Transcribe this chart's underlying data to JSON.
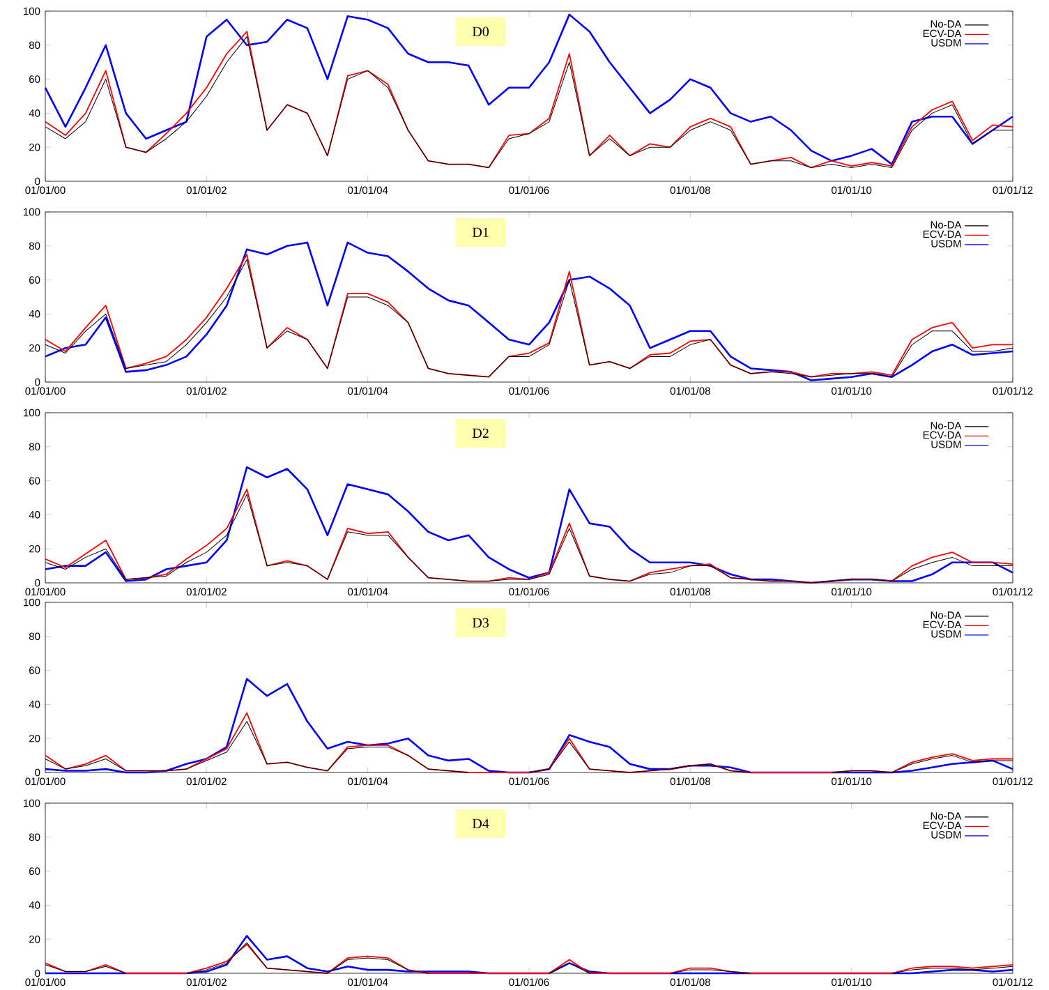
{
  "chart_data": [
    {
      "type": "line",
      "annotations": [
        "D0"
      ],
      "legend": "top right",
      "ylim": [
        0,
        100
      ],
      "yticks": [
        0,
        20,
        40,
        60,
        80,
        100
      ],
      "xlim": [
        "2000-01-01",
        "2012-01-01"
      ],
      "xticks": [
        {
          "value": "2000-01-01",
          "label": "01/01/00"
        },
        {
          "value": "2002-01-01",
          "label": "01/01/02"
        },
        {
          "value": "2004-01-01",
          "label": "01/01/04"
        },
        {
          "value": "2006-01-01",
          "label": "01/01/06"
        },
        {
          "value": "2008-01-01",
          "label": "01/01/08"
        },
        {
          "value": "2010-01-01",
          "label": "01/01/10"
        },
        {
          "value": "2012-01-01",
          "label": "01/01/12"
        }
      ],
      "x": [
        "2000-01",
        "2000-04",
        "2000-07",
        "2000-10",
        "2001-01",
        "2001-04",
        "2001-07",
        "2001-10",
        "2002-01",
        "2002-04",
        "2002-07",
        "2002-10",
        "2003-01",
        "2003-04",
        "2003-07",
        "2003-10",
        "2004-01",
        "2004-04",
        "2004-07",
        "2004-10",
        "2005-01",
        "2005-04",
        "2005-07",
        "2005-10",
        "2006-01",
        "2006-04",
        "2006-07",
        "2006-10",
        "2007-01",
        "2007-04",
        "2007-07",
        "2007-10",
        "2008-01",
        "2008-04",
        "2008-07",
        "2008-10",
        "2009-01",
        "2009-04",
        "2009-07",
        "2009-10",
        "2010-01",
        "2010-04",
        "2010-07",
        "2010-10",
        "2011-01",
        "2011-04",
        "2011-07",
        "2011-10",
        "2012-01"
      ],
      "series": [
        {
          "name": "No-DA",
          "color": "#000000",
          "values": [
            32,
            25,
            35,
            60,
            20,
            17,
            25,
            35,
            50,
            70,
            85,
            30,
            45,
            40,
            15,
            60,
            65,
            55,
            30,
            12,
            10,
            10,
            8,
            25,
            28,
            35,
            70,
            15,
            25,
            15,
            20,
            20,
            30,
            35,
            30,
            10,
            12,
            12,
            8,
            10,
            8,
            10,
            8,
            30,
            40,
            45,
            22,
            30,
            30
          ]
        },
        {
          "name": "ECV-DA",
          "color": "#ff0000",
          "values": [
            35,
            27,
            40,
            65,
            20,
            17,
            28,
            40,
            55,
            75,
            88,
            30,
            45,
            40,
            15,
            62,
            65,
            57,
            30,
            12,
            10,
            10,
            8,
            27,
            28,
            37,
            75,
            15,
            27,
            15,
            22,
            20,
            32,
            37,
            32,
            10,
            12,
            14,
            8,
            12,
            9,
            11,
            9,
            32,
            42,
            47,
            24,
            33,
            32
          ]
        },
        {
          "name": "USDM",
          "color": "#0000ff",
          "values": [
            55,
            32,
            55,
            80,
            40,
            25,
            30,
            35,
            85,
            95,
            80,
            82,
            95,
            90,
            60,
            97,
            95,
            90,
            75,
            70,
            70,
            68,
            45,
            55,
            55,
            70,
            98,
            88,
            70,
            55,
            40,
            48,
            60,
            55,
            40,
            35,
            38,
            30,
            18,
            12,
            15,
            19,
            10,
            35,
            38,
            38,
            22,
            30,
            38
          ]
        }
      ]
    },
    {
      "type": "line",
      "annotations": [
        "D1"
      ],
      "legend": "top right",
      "ylim": [
        0,
        100
      ],
      "yticks": [
        0,
        20,
        40,
        60,
        80,
        100
      ],
      "xlim": [
        "2000-01-01",
        "2012-01-01"
      ],
      "xticks": [
        {
          "value": "2000-01-01",
          "label": "01/01/00"
        },
        {
          "value": "2002-01-01",
          "label": "01/01/02"
        },
        {
          "value": "2004-01-01",
          "label": "01/01/04"
        },
        {
          "value": "2006-01-01",
          "label": "01/01/06"
        },
        {
          "value": "2008-01-01",
          "label": "01/01/08"
        },
        {
          "value": "2010-01-01",
          "label": "01/01/10"
        },
        {
          "value": "2012-01-01",
          "label": "01/01/12"
        }
      ],
      "x": [
        "2000-01",
        "2000-04",
        "2000-07",
        "2000-10",
        "2001-01",
        "2001-04",
        "2001-07",
        "2001-10",
        "2002-01",
        "2002-04",
        "2002-07",
        "2002-10",
        "2003-01",
        "2003-04",
        "2003-07",
        "2003-10",
        "2004-01",
        "2004-04",
        "2004-07",
        "2004-10",
        "2005-01",
        "2005-04",
        "2005-07",
        "2005-10",
        "2006-01",
        "2006-04",
        "2006-07",
        "2006-10",
        "2007-01",
        "2007-04",
        "2007-07",
        "2007-10",
        "2008-01",
        "2008-04",
        "2008-07",
        "2008-10",
        "2009-01",
        "2009-04",
        "2009-07",
        "2009-10",
        "2010-01",
        "2010-04",
        "2010-07",
        "2010-10",
        "2011-01",
        "2011-04",
        "2011-07",
        "2011-10",
        "2012-01"
      ],
      "series": [
        {
          "name": "No-DA",
          "color": "#000000",
          "values": [
            22,
            17,
            30,
            40,
            8,
            10,
            12,
            22,
            35,
            50,
            72,
            20,
            30,
            25,
            8,
            50,
            50,
            45,
            35,
            8,
            5,
            4,
            3,
            15,
            15,
            22,
            60,
            10,
            12,
            8,
            15,
            15,
            22,
            25,
            10,
            5,
            6,
            5,
            3,
            4,
            5,
            5,
            3,
            22,
            30,
            30,
            18,
            18,
            20
          ]
        },
        {
          "name": "ECV-DA",
          "color": "#ff0000",
          "values": [
            25,
            18,
            32,
            45,
            8,
            11,
            15,
            25,
            38,
            55,
            75,
            20,
            32,
            25,
            8,
            52,
            52,
            47,
            35,
            8,
            5,
            4,
            3,
            15,
            17,
            23,
            65,
            10,
            12,
            8,
            16,
            17,
            24,
            25,
            10,
            5,
            6,
            6,
            3,
            5,
            5,
            6,
            4,
            25,
            32,
            35,
            20,
            22,
            22
          ]
        },
        {
          "name": "USDM",
          "color": "#0000ff",
          "values": [
            15,
            20,
            22,
            38,
            6,
            7,
            10,
            15,
            28,
            45,
            78,
            75,
            80,
            82,
            45,
            82,
            76,
            74,
            65,
            55,
            48,
            45,
            35,
            25,
            22,
            35,
            60,
            62,
            55,
            45,
            20,
            25,
            30,
            30,
            15,
            8,
            7,
            6,
            1,
            2,
            3,
            5,
            3,
            10,
            18,
            22,
            16,
            17,
            18
          ]
        }
      ]
    },
    {
      "type": "line",
      "annotations": [
        "D2"
      ],
      "legend": "top right",
      "ylim": [
        0,
        100
      ],
      "yticks": [
        0,
        20,
        40,
        60,
        80,
        100
      ],
      "xlim": [
        "2000-01-01",
        "2012-01-01"
      ],
      "xticks": [
        {
          "value": "2000-01-01",
          "label": "01/01/00"
        },
        {
          "value": "2002-01-01",
          "label": "01/01/02"
        },
        {
          "value": "2004-01-01",
          "label": "01/01/04"
        },
        {
          "value": "2006-01-01",
          "label": "01/01/06"
        },
        {
          "value": "2008-01-01",
          "label": "01/01/08"
        },
        {
          "value": "2010-01-01",
          "label": "01/01/10"
        },
        {
          "value": "2012-01-01",
          "label": "01/01/12"
        }
      ],
      "x": [
        "2000-01",
        "2000-04",
        "2000-07",
        "2000-10",
        "2001-01",
        "2001-04",
        "2001-07",
        "2001-10",
        "2002-01",
        "2002-04",
        "2002-07",
        "2002-10",
        "2003-01",
        "2003-04",
        "2003-07",
        "2003-10",
        "2004-01",
        "2004-04",
        "2004-07",
        "2004-10",
        "2005-01",
        "2005-04",
        "2005-07",
        "2005-10",
        "2006-01",
        "2006-04",
        "2006-07",
        "2006-10",
        "2007-01",
        "2007-04",
        "2007-07",
        "2007-10",
        "2008-01",
        "2008-04",
        "2008-07",
        "2008-10",
        "2009-01",
        "2009-04",
        "2009-07",
        "2009-10",
        "2010-01",
        "2010-04",
        "2010-07",
        "2010-10",
        "2011-01",
        "2011-04",
        "2011-07",
        "2011-10",
        "2012-01"
      ],
      "series": [
        {
          "name": "No-DA",
          "color": "#000000",
          "values": [
            12,
            8,
            15,
            20,
            2,
            3,
            4,
            12,
            18,
            28,
            52,
            10,
            12,
            10,
            2,
            30,
            28,
            28,
            15,
            3,
            2,
            1,
            1,
            2,
            2,
            5,
            32,
            4,
            2,
            1,
            5,
            6,
            10,
            10,
            3,
            2,
            1,
            1,
            0,
            1,
            2,
            2,
            1,
            8,
            12,
            15,
            10,
            10,
            10
          ]
        },
        {
          "name": "ECV-DA",
          "color": "#ff0000",
          "values": [
            14,
            9,
            17,
            25,
            2,
            3,
            5,
            14,
            22,
            32,
            55,
            10,
            13,
            10,
            2,
            32,
            29,
            30,
            15,
            3,
            2,
            1,
            1,
            3,
            2,
            6,
            35,
            4,
            2,
            1,
            6,
            8,
            10,
            11,
            3,
            2,
            1,
            1,
            0,
            1,
            2,
            2,
            1,
            10,
            15,
            18,
            12,
            12,
            11
          ]
        },
        {
          "name": "USDM",
          "color": "#0000ff",
          "values": [
            8,
            10,
            10,
            18,
            1,
            2,
            8,
            10,
            12,
            25,
            68,
            62,
            67,
            55,
            28,
            58,
            55,
            52,
            42,
            30,
            25,
            28,
            15,
            8,
            3,
            6,
            55,
            35,
            33,
            20,
            12,
            12,
            12,
            10,
            5,
            2,
            2,
            1,
            0,
            1,
            2,
            2,
            1,
            1,
            5,
            12,
            12,
            12,
            6
          ]
        }
      ]
    },
    {
      "type": "line",
      "annotations": [
        "D3"
      ],
      "legend": "top right",
      "ylim": [
        0,
        100
      ],
      "yticks": [
        0,
        20,
        40,
        60,
        80,
        100
      ],
      "xlim": [
        "2000-01-01",
        "2012-01-01"
      ],
      "xticks": [
        {
          "value": "2000-01-01",
          "label": "01/01/00"
        },
        {
          "value": "2002-01-01",
          "label": "01/01/02"
        },
        {
          "value": "2004-01-01",
          "label": "01/01/04"
        },
        {
          "value": "2006-01-01",
          "label": "01/01/06"
        },
        {
          "value": "2008-01-01",
          "label": "01/01/08"
        },
        {
          "value": "2010-01-01",
          "label": "01/01/10"
        },
        {
          "value": "2012-01-01",
          "label": "01/01/12"
        }
      ],
      "x": [
        "2000-01",
        "2000-04",
        "2000-07",
        "2000-10",
        "2001-01",
        "2001-04",
        "2001-07",
        "2001-10",
        "2002-01",
        "2002-04",
        "2002-07",
        "2002-10",
        "2003-01",
        "2003-04",
        "2003-07",
        "2003-10",
        "2004-01",
        "2004-04",
        "2004-07",
        "2004-10",
        "2005-01",
        "2005-04",
        "2005-07",
        "2005-10",
        "2006-01",
        "2006-04",
        "2006-07",
        "2006-10",
        "2007-01",
        "2007-04",
        "2007-07",
        "2007-10",
        "2008-01",
        "2008-04",
        "2008-07",
        "2008-10",
        "2009-01",
        "2009-04",
        "2009-07",
        "2009-10",
        "2010-01",
        "2010-04",
        "2010-07",
        "2010-10",
        "2011-01",
        "2011-04",
        "2011-07",
        "2011-10",
        "2012-01"
      ],
      "series": [
        {
          "name": "No-DA",
          "color": "#000000",
          "values": [
            8,
            2,
            4,
            8,
            1,
            1,
            1,
            2,
            7,
            12,
            30,
            5,
            6,
            3,
            1,
            14,
            15,
            15,
            10,
            2,
            1,
            0,
            null,
            null,
            0,
            2,
            18,
            2,
            1,
            0,
            1,
            2,
            4,
            5,
            1,
            0,
            null,
            null,
            null,
            0,
            1,
            1,
            0,
            5,
            8,
            10,
            6,
            7,
            7
          ]
        },
        {
          "name": "ECV-DA",
          "color": "#ff0000",
          "values": [
            10,
            2,
            5,
            10,
            1,
            1,
            1,
            2,
            8,
            14,
            35,
            5,
            6,
            3,
            1,
            15,
            16,
            16,
            10,
            2,
            1,
            0,
            0,
            0,
            0,
            2,
            20,
            2,
            1,
            0,
            1,
            2,
            4,
            5,
            1,
            0,
            0,
            0,
            0,
            0,
            1,
            1,
            0,
            6,
            9,
            11,
            7,
            8,
            8
          ]
        },
        {
          "name": "USDM",
          "color": "#0000ff",
          "values": [
            2,
            1,
            1,
            2,
            0,
            0,
            1,
            5,
            8,
            15,
            55,
            45,
            52,
            30,
            14,
            18,
            16,
            17,
            20,
            10,
            7,
            8,
            1,
            0,
            0,
            2,
            22,
            18,
            15,
            5,
            2,
            2,
            4,
            4,
            3,
            0,
            0,
            0,
            0,
            0,
            0,
            0,
            0,
            1,
            3,
            5,
            6,
            7,
            2
          ]
        }
      ]
    },
    {
      "type": "line",
      "annotations": [
        "D4"
      ],
      "legend": "top right",
      "ylim": [
        0,
        100
      ],
      "yticks": [
        0,
        20,
        40,
        60,
        80,
        100
      ],
      "xlim": [
        "2000-01-01",
        "2012-01-01"
      ],
      "xticks": [
        {
          "value": "2000-01-01",
          "label": "01/01/00"
        },
        {
          "value": "2002-01-01",
          "label": "01/01/02"
        },
        {
          "value": "2004-01-01",
          "label": "01/01/04"
        },
        {
          "value": "2006-01-01",
          "label": "01/01/06"
        },
        {
          "value": "2008-01-01",
          "label": "01/01/08"
        },
        {
          "value": "2010-01-01",
          "label": "01/01/10"
        },
        {
          "value": "2012-01-01",
          "label": "01/01/12"
        }
      ],
      "x": [
        "2000-01",
        "2000-04",
        "2000-07",
        "2000-10",
        "2001-01",
        "2001-04",
        "2001-07",
        "2001-10",
        "2002-01",
        "2002-04",
        "2002-07",
        "2002-10",
        "2003-01",
        "2003-04",
        "2003-07",
        "2003-10",
        "2004-01",
        "2004-04",
        "2004-07",
        "2004-10",
        "2005-01",
        "2005-04",
        "2005-07",
        "2005-10",
        "2006-01",
        "2006-04",
        "2006-07",
        "2006-10",
        "2007-01",
        "2007-04",
        "2007-07",
        "2007-10",
        "2008-01",
        "2008-04",
        "2008-07",
        "2008-10",
        "2009-01",
        "2009-04",
        "2009-07",
        "2009-10",
        "2010-01",
        "2010-04",
        "2010-07",
        "2010-10",
        "2011-01",
        "2011-04",
        "2011-07",
        "2011-10",
        "2012-01"
      ],
      "series": [
        {
          "name": "No-DA",
          "color": "#000000",
          "values": [
            5,
            1,
            1,
            4,
            0,
            null,
            null,
            0,
            2,
            6,
            18,
            3,
            2,
            1,
            0,
            8,
            9,
            8,
            2,
            0,
            null,
            null,
            null,
            null,
            null,
            0,
            6,
            0,
            null,
            null,
            null,
            0,
            2,
            2,
            1,
            0,
            null,
            null,
            null,
            null,
            null,
            null,
            0,
            2,
            3,
            3,
            2,
            3,
            4
          ]
        },
        {
          "name": "ECV-DA",
          "color": "#ff0000",
          "values": [
            6,
            1,
            1,
            5,
            0,
            0,
            0,
            0,
            3,
            7,
            17,
            3,
            2,
            1,
            0,
            9,
            10,
            9,
            2,
            0,
            0,
            0,
            0,
            0,
            0,
            0,
            8,
            0,
            0,
            0,
            0,
            0,
            3,
            3,
            1,
            0,
            0,
            0,
            0,
            0,
            0,
            0,
            0,
            3,
            4,
            4,
            3,
            4,
            5
          ]
        },
        {
          "name": "USDM",
          "color": "#0000ff",
          "values": [
            0,
            0,
            0,
            0,
            0,
            0,
            0,
            0,
            1,
            5,
            22,
            8,
            10,
            3,
            1,
            4,
            2,
            2,
            1,
            1,
            1,
            1,
            0,
            0,
            0,
            0,
            6,
            1,
            0,
            0,
            0,
            0,
            0,
            0,
            0,
            0,
            0,
            0,
            0,
            0,
            0,
            0,
            0,
            0,
            1,
            2,
            2,
            1,
            2
          ]
        }
      ]
    }
  ]
}
